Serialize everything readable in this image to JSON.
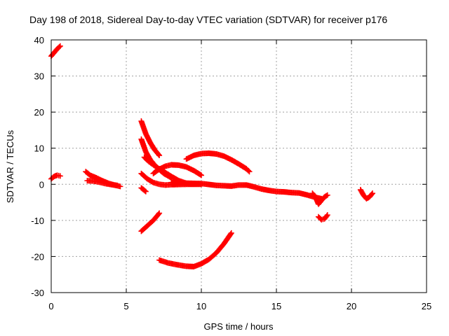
{
  "chart_data": {
    "type": "scatter",
    "title": "Day 198 of 2018, Sidereal Day-to-day VTEC variation (SDTVAR) for receiver p176",
    "xlabel": "GPS time / hours",
    "ylabel": "SDTVAR / TECUs",
    "xlim": [
      0,
      25
    ],
    "ylim": [
      -30,
      40
    ],
    "xticks": [
      0,
      5,
      10,
      15,
      20,
      25
    ],
    "yticks": [
      -30,
      -20,
      -10,
      0,
      10,
      20,
      30,
      40
    ],
    "grid": true,
    "marker": "plus",
    "color": "#ff0000",
    "segments": [
      {
        "points": [
          [
            0.0,
            35.5
          ],
          [
            0.2,
            36.5
          ],
          [
            0.4,
            37.5
          ],
          [
            0.6,
            38.3
          ]
        ]
      },
      {
        "points": [
          [
            0.0,
            1.5
          ],
          [
            0.2,
            2.2
          ],
          [
            0.4,
            2.5
          ],
          [
            0.6,
            2.3
          ]
        ]
      },
      {
        "points": [
          [
            2.3,
            3.5
          ],
          [
            2.6,
            2.5
          ],
          [
            3.0,
            1.8
          ],
          [
            3.4,
            1.0
          ],
          [
            3.8,
            0.3
          ],
          [
            4.2,
            -0.2
          ],
          [
            4.6,
            -0.6
          ]
        ]
      },
      {
        "points": [
          [
            2.4,
            1.0
          ],
          [
            2.8,
            0.9
          ],
          [
            3.2,
            0.6
          ],
          [
            3.6,
            0.2
          ],
          [
            4.0,
            -0.1
          ],
          [
            4.4,
            -0.3
          ]
        ]
      },
      {
        "points": [
          [
            6.0,
            17.5
          ],
          [
            6.3,
            14.0
          ],
          [
            6.6,
            11.5
          ],
          [
            6.9,
            9.5
          ],
          [
            7.2,
            8.0
          ]
        ]
      },
      {
        "points": [
          [
            6.0,
            12.5
          ],
          [
            6.3,
            9.0
          ],
          [
            6.6,
            6.8
          ],
          [
            7.0,
            4.8
          ],
          [
            7.5,
            3.0
          ],
          [
            8.0,
            1.8
          ]
        ]
      },
      {
        "points": [
          [
            6.2,
            7.5
          ],
          [
            6.5,
            6.3
          ],
          [
            7.0,
            4.8
          ],
          [
            7.5,
            3.5
          ],
          [
            8.0,
            2.2
          ],
          [
            8.5,
            1.0
          ],
          [
            9.0,
            0.3
          ]
        ]
      },
      {
        "points": [
          [
            6.0,
            3.0
          ],
          [
            6.4,
            1.5
          ],
          [
            6.8,
            0.5
          ],
          [
            7.2,
            0.0
          ],
          [
            7.6,
            -0.2
          ],
          [
            8.0,
            -0.1
          ],
          [
            9.0,
            0.0
          ],
          [
            10.0,
            0.0
          ]
        ]
      },
      {
        "points": [
          [
            6.0,
            -1.0
          ],
          [
            6.3,
            -2.0
          ]
        ]
      },
      {
        "points": [
          [
            6.0,
            -13.0
          ],
          [
            6.4,
            -11.5
          ],
          [
            6.8,
            -10.0
          ],
          [
            7.2,
            -8.0
          ]
        ]
      },
      {
        "points": [
          [
            6.8,
            3.0
          ],
          [
            7.2,
            4.2
          ],
          [
            7.6,
            5.0
          ],
          [
            8.0,
            5.4
          ],
          [
            8.5,
            5.3
          ],
          [
            9.0,
            4.8
          ],
          [
            9.5,
            3.8
          ],
          [
            10.0,
            2.5
          ]
        ]
      },
      {
        "points": [
          [
            9.0,
            7.0
          ],
          [
            9.5,
            8.0
          ],
          [
            10.0,
            8.5
          ],
          [
            10.5,
            8.6
          ],
          [
            11.0,
            8.4
          ],
          [
            11.5,
            7.8
          ],
          [
            12.0,
            6.8
          ],
          [
            12.5,
            5.6
          ],
          [
            13.0,
            4.3
          ],
          [
            13.2,
            3.5
          ]
        ]
      },
      {
        "points": [
          [
            8.0,
            0.5
          ],
          [
            9.0,
            0.3
          ],
          [
            10.0,
            0.2
          ],
          [
            11.0,
            -0.3
          ],
          [
            12.0,
            -0.5
          ],
          [
            12.5,
            -0.2
          ],
          [
            13.0,
            -0.2
          ],
          [
            13.5,
            -0.7
          ],
          [
            14.0,
            -1.3
          ],
          [
            14.5,
            -1.7
          ],
          [
            15.0,
            -2.0
          ],
          [
            15.5,
            -2.1
          ],
          [
            16.0,
            -2.3
          ],
          [
            16.5,
            -2.4
          ],
          [
            17.0,
            -2.9
          ],
          [
            17.5,
            -3.5
          ],
          [
            18.0,
            -4.0
          ]
        ]
      },
      {
        "points": [
          [
            7.2,
            -21.0
          ],
          [
            7.8,
            -21.8
          ],
          [
            8.4,
            -22.3
          ],
          [
            9.0,
            -22.7
          ],
          [
            9.5,
            -22.8
          ],
          [
            10.0,
            -22.0
          ],
          [
            10.5,
            -20.8
          ],
          [
            11.0,
            -19.0
          ],
          [
            11.5,
            -16.5
          ],
          [
            12.0,
            -13.5
          ]
        ]
      },
      {
        "points": [
          [
            17.4,
            -2.5
          ],
          [
            17.6,
            -3.5
          ],
          [
            17.8,
            -5.5
          ],
          [
            18.0,
            -4.5
          ],
          [
            18.2,
            -3.5
          ],
          [
            18.4,
            -3.0
          ]
        ]
      },
      {
        "points": [
          [
            17.8,
            -9.0
          ],
          [
            18.0,
            -9.8
          ],
          [
            18.2,
            -9.6
          ],
          [
            18.4,
            -8.5
          ]
        ]
      },
      {
        "points": [
          [
            20.6,
            -1.5
          ],
          [
            20.8,
            -3.0
          ],
          [
            21.0,
            -4.0
          ],
          [
            21.2,
            -3.5
          ],
          [
            21.4,
            -2.5
          ]
        ]
      }
    ]
  }
}
